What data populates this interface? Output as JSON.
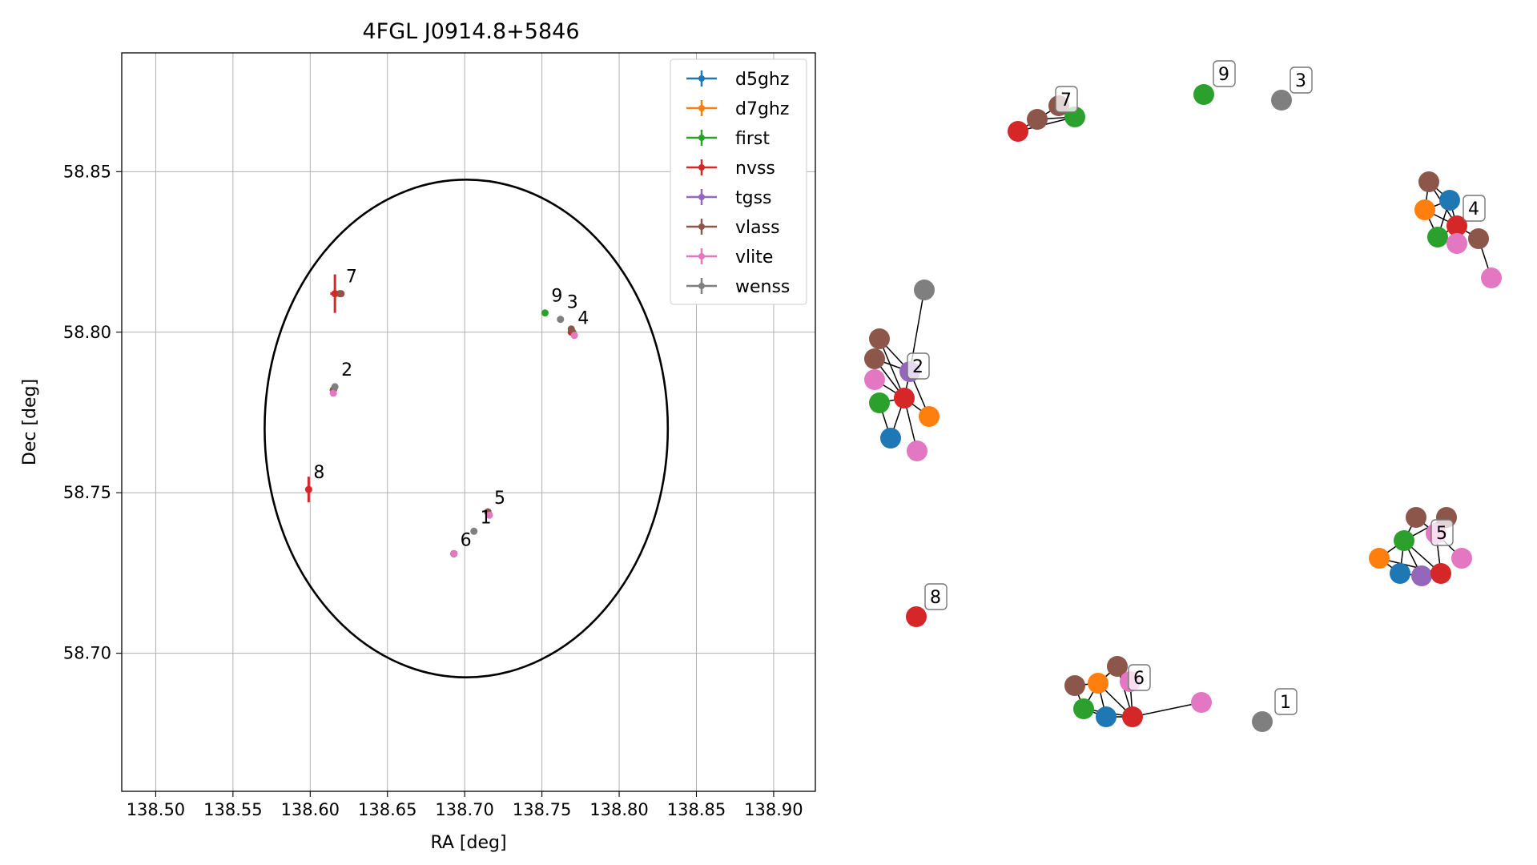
{
  "chart_data": [
    {
      "type": "scatter",
      "title": "4FGL J0914.8+5846",
      "xlabel": "RA [deg]",
      "ylabel": "Dec [deg]",
      "xlim": [
        138.478,
        138.927
      ],
      "ylim": [
        58.657,
        58.887
      ],
      "xticks": [
        138.5,
        138.55,
        138.6,
        138.65,
        138.7,
        138.75,
        138.8,
        138.85,
        138.9
      ],
      "xtick_labels": [
        "138.50",
        "138.55",
        "138.60",
        "138.65",
        "138.70",
        "138.75",
        "138.80",
        "138.85",
        "138.90"
      ],
      "yticks": [
        58.7,
        58.75,
        58.8,
        58.85
      ],
      "ytick_labels": [
        "58.70",
        "58.75",
        "58.80",
        "58.85"
      ],
      "grid": true,
      "legend_position": "top-right",
      "ellipse": {
        "center": [
          138.701,
          58.77
        ],
        "semi_axis_ra": 0.1305,
        "semi_axis_dec": 0.0775,
        "color": "#000000"
      },
      "series": [
        {
          "name": "d5ghz",
          "color": "#1f77b4",
          "points": [
            [
              138.615,
              58.782,
              0,
              0
            ],
            [
              138.715,
              58.744,
              0,
              0
            ],
            [
              138.693,
              58.731,
              0,
              0
            ]
          ]
        },
        {
          "name": "d7ghz",
          "color": "#ff7f0e",
          "points": [
            [
              138.615,
              58.782,
              0,
              0
            ],
            [
              138.715,
              58.744,
              0,
              0
            ],
            [
              138.693,
              58.731,
              0,
              0
            ]
          ]
        },
        {
          "name": "first",
          "color": "#2ca02c",
          "points": [
            [
              138.752,
              58.806,
              0,
              0
            ],
            [
              138.77,
              58.8,
              0,
              0
            ],
            [
              138.615,
              58.782,
              0,
              0
            ],
            [
              138.715,
              58.744,
              0,
              0
            ],
            [
              138.693,
              58.731,
              0,
              0
            ],
            [
              138.619,
              58.812,
              0,
              0
            ]
          ]
        },
        {
          "name": "nvss",
          "color": "#d62728",
          "points": [
            [
              138.616,
              58.812,
              0.003,
              0.006
            ],
            [
              138.599,
              58.751,
              0.001,
              0.004
            ],
            [
              138.769,
              58.8,
              0,
              0
            ],
            [
              138.615,
              58.782,
              0,
              0
            ],
            [
              138.715,
              58.744,
              0,
              0
            ],
            [
              138.693,
              58.731,
              0,
              0
            ]
          ]
        },
        {
          "name": "tgss",
          "color": "#9467bd",
          "points": [
            [
              138.615,
              58.782,
              0,
              0
            ],
            [
              138.715,
              58.744,
              0,
              0
            ]
          ]
        },
        {
          "name": "vlass",
          "color": "#8c564b",
          "points": [
            [
              138.62,
              58.812,
              0,
              0
            ],
            [
              138.769,
              58.801,
              0,
              0
            ],
            [
              138.615,
              58.782,
              0,
              0
            ],
            [
              138.715,
              58.744,
              0,
              0
            ],
            [
              138.693,
              58.731,
              0,
              0
            ]
          ]
        },
        {
          "name": "vlite",
          "color": "#e377c2",
          "points": [
            [
              138.771,
              58.799,
              0,
              0
            ],
            [
              138.615,
              58.781,
              0,
              0
            ],
            [
              138.716,
              58.743,
              0,
              0
            ],
            [
              138.693,
              58.731,
              0,
              0
            ]
          ]
        },
        {
          "name": "wenss",
          "color": "#7f7f7f",
          "points": [
            [
              138.706,
              58.738,
              0,
              0
            ],
            [
              138.762,
              58.804,
              0,
              0
            ],
            [
              138.616,
              58.783,
              0,
              0
            ]
          ]
        }
      ],
      "annotations": [
        {
          "text": "1",
          "x": 138.707,
          "y": 58.739
        },
        {
          "text": "2",
          "x": 138.617,
          "y": 58.785
        },
        {
          "text": "3",
          "x": 138.763,
          "y": 58.806
        },
        {
          "text": "4",
          "x": 138.77,
          "y": 58.801
        },
        {
          "text": "5",
          "x": 138.716,
          "y": 58.745
        },
        {
          "text": "6",
          "x": 138.694,
          "y": 58.732
        },
        {
          "text": "7",
          "x": 138.62,
          "y": 58.814
        },
        {
          "text": "8",
          "x": 138.599,
          "y": 58.753
        },
        {
          "text": "9",
          "x": 138.753,
          "y": 58.808
        }
      ]
    },
    {
      "type": "network",
      "node_colors": {
        "blue": "#1f77b4",
        "orange": "#ff7f0e",
        "green": "#2ca02c",
        "red": "#d62728",
        "purple": "#9467bd",
        "brown": "#8c564b",
        "pink": "#e377c2",
        "gray": "#7f7f7f"
      },
      "cluster_labels": [
        "1",
        "2",
        "3",
        "4",
        "5",
        "6",
        "7",
        "8",
        "9"
      ]
    }
  ]
}
